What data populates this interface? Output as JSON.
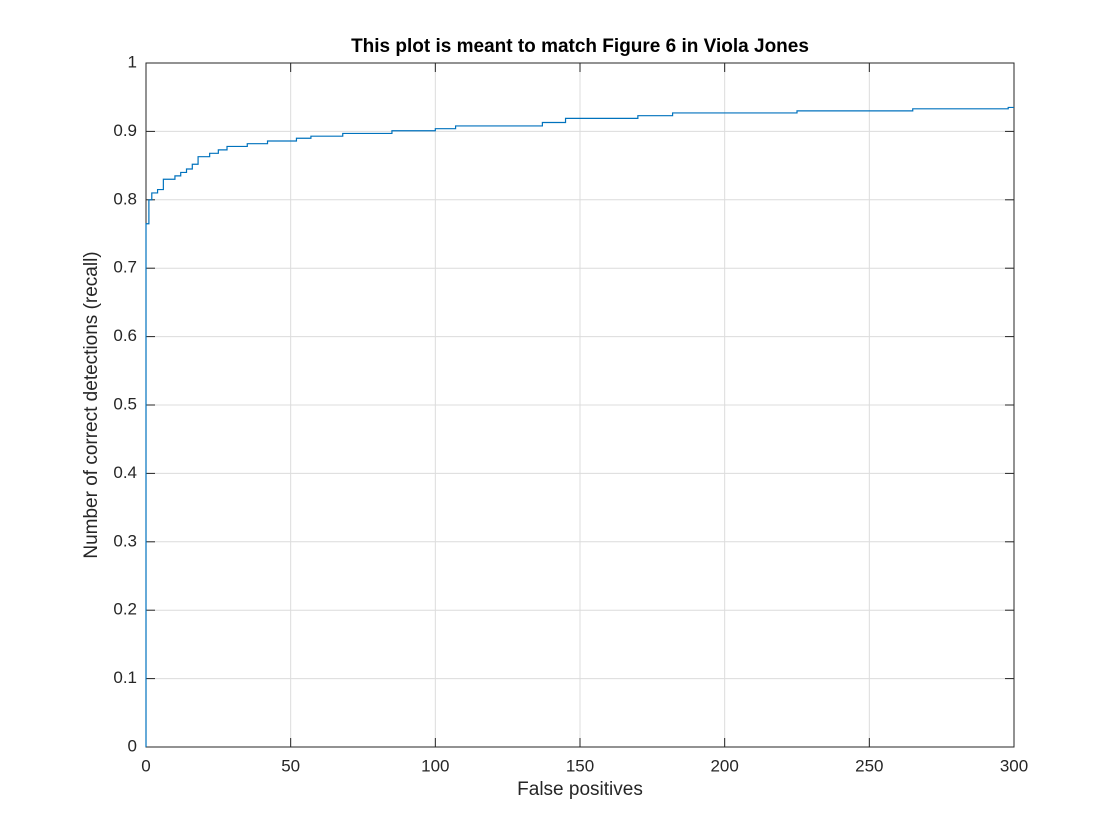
{
  "chart_data": {
    "type": "line",
    "title": "This plot is meant to match Figure 6 in Viola Jones",
    "x_label": "False positives",
    "y_label": "Number of correct detections (recall)",
    "x": [
      0,
      0,
      1,
      1,
      2,
      2,
      4,
      4,
      6,
      6,
      10,
      10,
      12,
      12,
      14,
      14,
      16,
      16,
      18,
      18,
      22,
      22,
      25,
      25,
      28,
      28,
      35,
      35,
      42,
      42,
      52,
      52,
      57,
      57,
      68,
      68,
      85,
      85,
      100,
      100,
      107,
      107,
      137,
      137,
      145,
      145,
      170,
      170,
      182,
      182,
      225,
      225,
      265,
      265,
      298,
      298,
      300
    ],
    "series": [
      {
        "color": "#0072bd",
        "values": [
          0,
          0.765,
          0.765,
          0.8,
          0.8,
          0.81,
          0.81,
          0.815,
          0.815,
          0.83,
          0.83,
          0.835,
          0.835,
          0.84,
          0.84,
          0.845,
          0.845,
          0.852,
          0.852,
          0.863,
          0.863,
          0.868,
          0.868,
          0.873,
          0.873,
          0.878,
          0.878,
          0.882,
          0.882,
          0.886,
          0.886,
          0.89,
          0.89,
          0.893,
          0.893,
          0.897,
          0.897,
          0.901,
          0.901,
          0.904,
          0.904,
          0.908,
          0.908,
          0.913,
          0.913,
          0.919,
          0.919,
          0.923,
          0.923,
          0.927,
          0.927,
          0.93,
          0.93,
          0.933,
          0.933,
          0.935,
          0.935
        ]
      }
    ],
    "xlim": [
      0,
      300
    ],
    "xticks": [
      0,
      50,
      100,
      150,
      200,
      250,
      300
    ],
    "ylim": [
      0,
      1
    ],
    "yticks": [
      0,
      0.1,
      0.2,
      0.3,
      0.4,
      0.5,
      0.6,
      0.7,
      0.8,
      0.9,
      1
    ],
    "grid": true
  }
}
